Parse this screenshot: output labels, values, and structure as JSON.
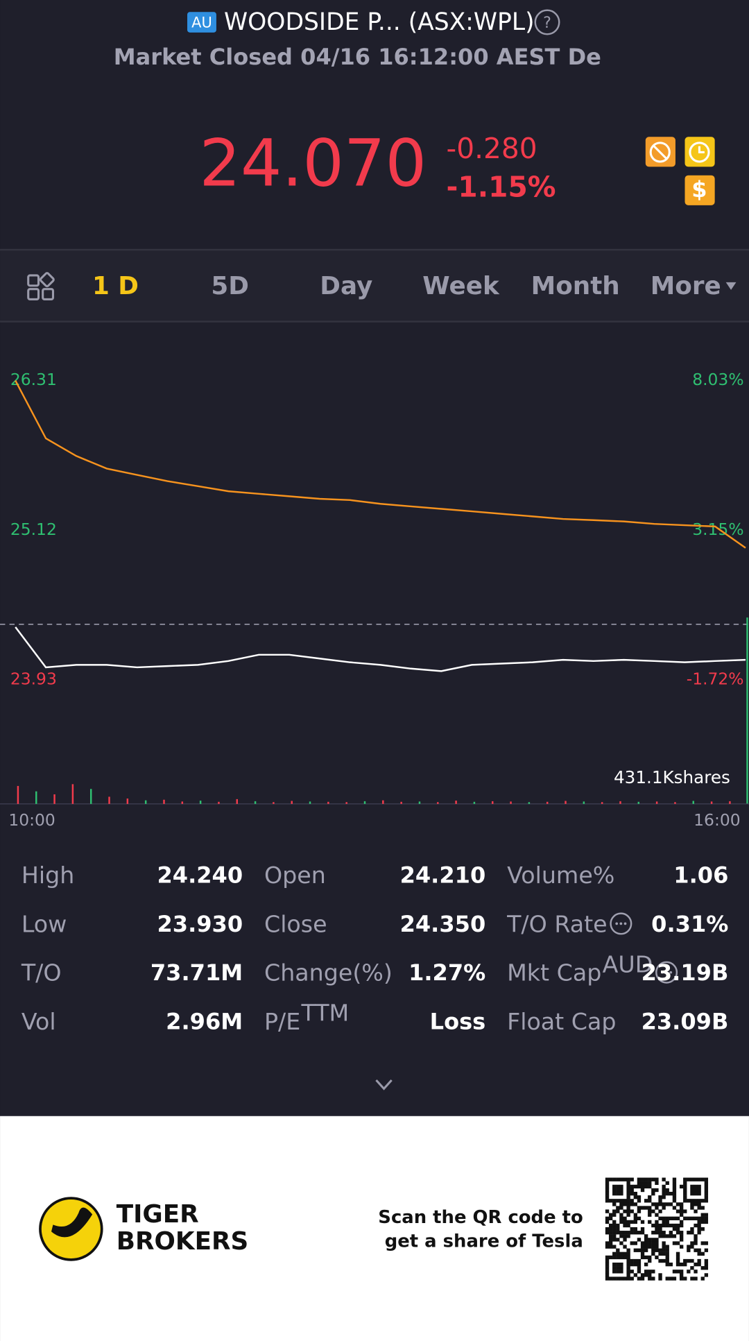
{
  "header": {
    "badge": "AU",
    "title": "WOODSIDE P... (ASX:WPL)",
    "status": "Market Closed 04/16 16:12:00 AEST De"
  },
  "quote": {
    "price": "24.070",
    "change": "-0.280",
    "change_pct": "-1.15%"
  },
  "tabs": [
    "1 D",
    "5D",
    "Day",
    "Week",
    "Month",
    "More"
  ],
  "chart_data": {
    "type": "line",
    "ylim": [
      23.93,
      26.31
    ],
    "yticks": [
      26.31,
      25.12,
      23.93
    ],
    "y2lim": [
      -1.72,
      8.03
    ],
    "y2ticks": [
      {
        "value": 8.03,
        "label": "8.03%"
      },
      {
        "value": 3.15,
        "label": "3.15%"
      },
      {
        "value": -1.72,
        "label": "-1.72%"
      }
    ],
    "x_labels": [
      "10:00",
      "16:00"
    ],
    "series": [
      {
        "color": "#f7931e",
        "values": [
          26.31,
          25.85,
          25.71,
          25.61,
          25.56,
          25.51,
          25.47,
          25.43,
          25.41,
          25.39,
          25.37,
          25.36,
          25.33,
          25.31,
          25.29,
          25.27,
          25.25,
          25.23,
          25.21,
          25.2,
          25.19,
          25.17,
          25.16,
          25.15,
          24.98
        ]
      },
      {
        "color": "#ffffff",
        "values": [
          24.35,
          24.03,
          24.05,
          24.05,
          24.03,
          24.04,
          24.05,
          24.08,
          24.13,
          24.13,
          24.1,
          24.07,
          24.05,
          24.02,
          24.0,
          24.05,
          24.06,
          24.07,
          24.09,
          24.08,
          24.09,
          24.08,
          24.07,
          24.08,
          24.09
        ]
      }
    ],
    "volume": {
      "label": "431.1Kshares",
      "values": [
        300,
        210,
        160,
        330,
        250,
        120,
        90,
        60,
        70,
        40,
        55,
        35,
        80,
        45,
        30,
        50,
        40,
        35,
        30,
        45,
        60,
        35,
        40,
        30,
        55,
        35,
        45,
        40,
        30,
        35,
        50,
        40,
        30,
        45,
        35,
        40,
        30,
        50,
        40,
        45
      ]
    }
  },
  "stats": [
    [
      {
        "label": "High",
        "value": "24.240"
      },
      {
        "label": "Open",
        "value": "24.210"
      },
      {
        "label": "Volume%",
        "value": "1.06"
      }
    ],
    [
      {
        "label": "Low",
        "value": "23.930"
      },
      {
        "label": "Close",
        "value": "24.350"
      },
      {
        "label": "T/O Rate",
        "value": "0.31%"
      }
    ],
    [
      {
        "label": "T/O",
        "value": "73.71M"
      },
      {
        "label": "Change(%)",
        "value": "1.27%"
      },
      {
        "label": "Mkt Cap",
        "sup": "AUD",
        "value": "23.19B"
      }
    ],
    [
      {
        "label": "Vol",
        "value": "2.96M"
      },
      {
        "label": "P/E",
        "sup": "TTM",
        "value": "Loss"
      },
      {
        "label": "Float Cap",
        "value": "23.09B"
      }
    ]
  ],
  "footer": {
    "brand": [
      "TIGER",
      "BROKERS"
    ],
    "promo": [
      "Scan the QR code to",
      "get a share of Tesla"
    ]
  }
}
